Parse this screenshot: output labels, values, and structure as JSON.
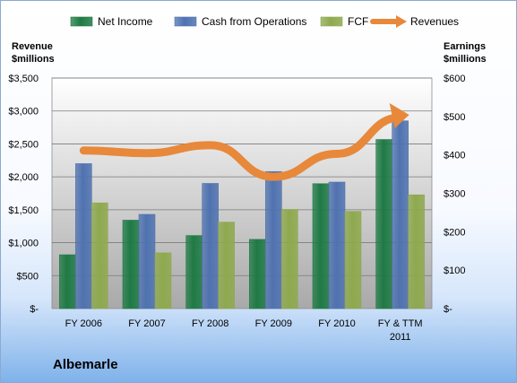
{
  "chart_data": {
    "type": "bar",
    "title": "Albemarle",
    "categories": [
      "FY 2006",
      "FY 2007",
      "FY 2008",
      "FY 2009",
      "FY 2010",
      "FY & TTM 2011"
    ],
    "series": [
      {
        "name": "Net Income",
        "axis": "right",
        "values": [
          140,
          230,
          190,
          180,
          325,
          440
        ],
        "color": "#1f7a45"
      },
      {
        "name": "Cash from Operations",
        "axis": "left",
        "values": [
          2200,
          1430,
          1900,
          2080,
          1920,
          2850
        ],
        "color": "#4f72b0"
      },
      {
        "name": "FCF",
        "axis": "right",
        "values": [
          275,
          145,
          225,
          258,
          253,
          296
        ],
        "color": "#8ea94e"
      },
      {
        "name": "Revenues",
        "type": "line",
        "axis": "left",
        "values": [
          2400,
          2360,
          2480,
          2000,
          2350,
          2900
        ],
        "color": "#e8883a"
      }
    ],
    "ylabel_left": "Revenue\n$millions",
    "ylabel_right": "Earnings\n$millions",
    "ylim_left": [
      0,
      3500
    ],
    "ylim_right": [
      0,
      600
    ],
    "yticks_left": [
      "$-",
      "$500",
      "$1,000",
      "$1,500",
      "$2,000",
      "$2,500",
      "$3,000",
      "$3,500"
    ],
    "yticks_right": [
      "$-",
      "$100",
      "$200",
      "$300",
      "$400",
      "$500",
      "$600"
    ],
    "grid": true,
    "legend": "top"
  }
}
